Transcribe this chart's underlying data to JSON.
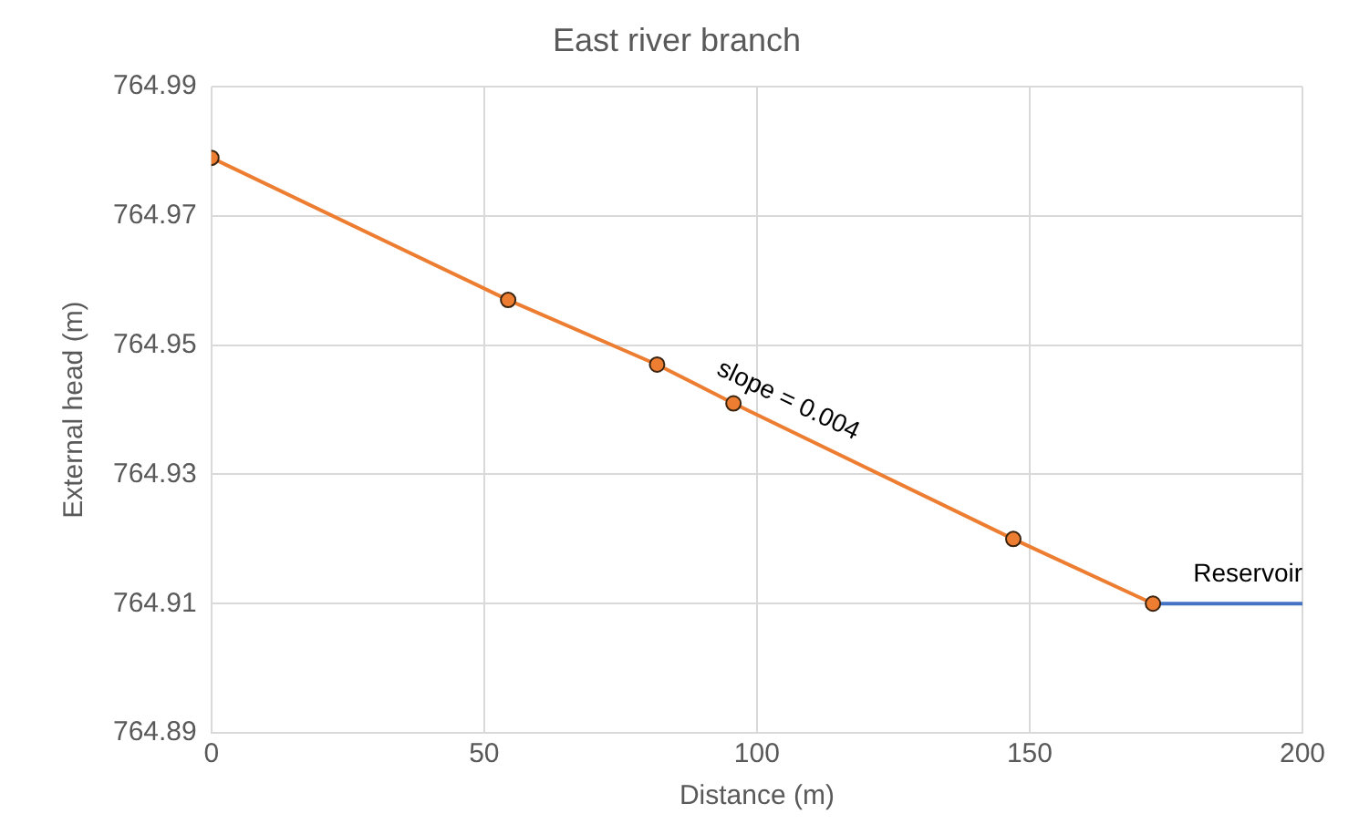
{
  "chart_data": {
    "type": "line",
    "title": "East river branch",
    "xlabel": "Distance (m)",
    "ylabel": "External head (m)",
    "xlim": [
      0,
      200
    ],
    "xticks": [
      0,
      50,
      100,
      150,
      200
    ],
    "ylim": [
      764.89,
      764.99
    ],
    "yticks": [
      {
        "value": 764.89,
        "label": "764.89"
      },
      {
        "value": 764.91,
        "label": "764.91"
      },
      {
        "value": 764.93,
        "label": "764.93"
      },
      {
        "value": 764.95,
        "label": "764.95"
      },
      {
        "value": 764.97,
        "label": "764.97"
      },
      {
        "value": 764.99,
        "label": "764.99"
      }
    ],
    "grid": true,
    "legend": false,
    "series": [
      {
        "color": "#ed7d31",
        "marker": "circle",
        "x": [
          0,
          54.4,
          81.7,
          95.7,
          147,
          172.6
        ],
        "values": [
          764.979,
          764.957,
          764.947,
          764.941,
          764.92,
          764.91
        ]
      },
      {
        "name": "Reservoir",
        "color": "#4472c4",
        "marker": "none",
        "x": [
          172.6,
          200
        ],
        "values": [
          764.91,
          764.91
        ]
      }
    ],
    "annotations": [
      "slope = 0.004"
    ]
  }
}
